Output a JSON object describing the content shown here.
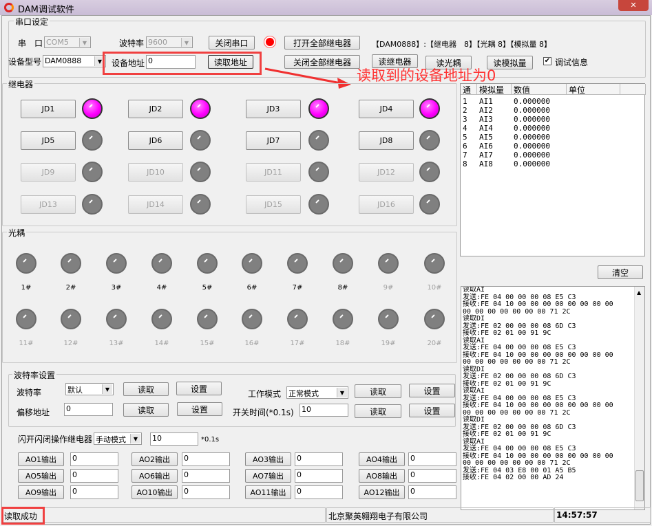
{
  "window": {
    "title": "DAM调试软件",
    "close": "✕"
  },
  "serial": {
    "group": "串口设定",
    "port_label": "串　口",
    "port": "COM5",
    "baud_label": "波特率",
    "baud": "9600",
    "close_port": "关闭串口",
    "open_all": "打开全部继电器",
    "close_all": "关闭全部继电器",
    "info": "【DAM0888】:【继电器　8】【光耦 8】【模拟量 8】",
    "model_label": "设备型号",
    "model": "DAM0888",
    "addr_label": "设备地址",
    "addr": "0",
    "read_addr": "读取地址",
    "read_relay": "读继电器",
    "read_opto": "读光耦",
    "read_analog": "读模拟量",
    "debug_label": "调试信息",
    "debug_checked": true
  },
  "annotation": {
    "text": "读取到的设备地址为0",
    "color": "#ff3333"
  },
  "relay": {
    "group": "继电器",
    "items": [
      {
        "label": "JD1",
        "on": true,
        "enabled": true
      },
      {
        "label": "JD2",
        "on": true,
        "enabled": true
      },
      {
        "label": "JD3",
        "on": true,
        "enabled": true
      },
      {
        "label": "JD4",
        "on": true,
        "enabled": true
      },
      {
        "label": "JD5",
        "on": false,
        "enabled": true
      },
      {
        "label": "JD6",
        "on": false,
        "enabled": true
      },
      {
        "label": "JD7",
        "on": false,
        "enabled": true
      },
      {
        "label": "JD8",
        "on": false,
        "enabled": true
      },
      {
        "label": "JD9",
        "on": false,
        "enabled": false
      },
      {
        "label": "JD10",
        "on": false,
        "enabled": false
      },
      {
        "label": "JD11",
        "on": false,
        "enabled": false
      },
      {
        "label": "JD12",
        "on": false,
        "enabled": false
      },
      {
        "label": "JD13",
        "on": false,
        "enabled": false
      },
      {
        "label": "JD14",
        "on": false,
        "enabled": false
      },
      {
        "label": "JD15",
        "on": false,
        "enabled": false
      },
      {
        "label": "JD16",
        "on": false,
        "enabled": false
      }
    ]
  },
  "opto": {
    "group": "光耦",
    "items": [
      "1#",
      "2#",
      "3#",
      "4#",
      "5#",
      "6#",
      "7#",
      "8#",
      "9#",
      "10#",
      "11#",
      "12#",
      "13#",
      "14#",
      "15#",
      "16#",
      "17#",
      "18#",
      "19#",
      "20#"
    ],
    "enabled_count": 8
  },
  "analog_table": {
    "headers": [
      "通",
      "模拟量",
      "数值",
      "单位"
    ],
    "rows": [
      [
        "1",
        "AI1",
        "0.000000",
        ""
      ],
      [
        "2",
        "AI2",
        "0.000000",
        ""
      ],
      [
        "3",
        "AI3",
        "0.000000",
        ""
      ],
      [
        "4",
        "AI4",
        "0.000000",
        ""
      ],
      [
        "5",
        "AI5",
        "0.000000",
        ""
      ],
      [
        "6",
        "AI6",
        "0.000000",
        ""
      ],
      [
        "7",
        "AI7",
        "0.000000",
        ""
      ],
      [
        "8",
        "AI8",
        "0.000000",
        ""
      ]
    ]
  },
  "clear": "清空",
  "log": [
    "读取AI",
    "发送:FE 04 00 00 00 08 E5 C3",
    "接收:FE 04 10 00 00 00 00 00 00 00 00",
    "00 00 00 00 00 00 00 71 2C",
    "读取DI",
    "发送:FE 02 00 00 00 08 6D C3",
    "接收:FE 02 01 00 91 9C",
    "读取AI",
    "发送:FE 04 00 00 00 08 E5 C3",
    "接收:FE 04 10 00 00 00 00 00 00 00 00",
    "00 00 00 00 00 00 00 71 2C",
    "读取DI",
    "发送:FE 02 00 00 00 08 6D C3",
    "接收:FE 02 01 00 91 9C",
    "读取AI",
    "发送:FE 04 00 00 00 08 E5 C3",
    "接收:FE 04 10 00 00 00 00 00 00 00 00",
    "00 00 00 00 00 00 00 71 2C",
    "读取DI",
    "发送:FE 02 00 00 00 08 6D C3",
    "接收:FE 02 01 00 91 9C",
    "读取AI",
    "发送:FE 04 00 00 00 08 E5 C3",
    "接收:FE 04 10 00 00 00 00 00 00 00 00",
    "00 00 00 00 00 00 00 71 2C",
    "发送:FE 04 03 E8 00 01 A5 B5",
    "接收:FE 04 02 00 00 AD 24"
  ],
  "baudset": {
    "group": "波特率设置",
    "baud_label": "波特率",
    "baud": "默认",
    "read": "读取",
    "set": "设置",
    "offset_label": "偏移地址",
    "offset": "0",
    "mode_label": "工作模式",
    "mode": "正常模式",
    "time_label": "开关时间(*0.1s)",
    "time": "10"
  },
  "flash": {
    "label": "闪开闪闭操作继电器",
    "mode": "手动模式",
    "value": "10",
    "unit": "*0.1s"
  },
  "ao": [
    {
      "label": "AO1输出",
      "value": "0"
    },
    {
      "label": "AO2输出",
      "value": "0"
    },
    {
      "label": "AO3输出",
      "value": "0"
    },
    {
      "label": "AO4输出",
      "value": "0"
    },
    {
      "label": "AO5输出",
      "value": "0"
    },
    {
      "label": "AO6输出",
      "value": "0"
    },
    {
      "label": "AO7输出",
      "value": "0"
    },
    {
      "label": "AO8输出",
      "value": "0"
    },
    {
      "label": "AO9输出",
      "value": "0"
    },
    {
      "label": "AO10输出",
      "value": "0"
    },
    {
      "label": "AO11输出",
      "value": "0"
    },
    {
      "label": "AO12输出",
      "value": "0"
    }
  ],
  "status": {
    "message": "读取成功",
    "company": "北京聚英翱翔电子有限公司",
    "time": "14:57:57"
  }
}
